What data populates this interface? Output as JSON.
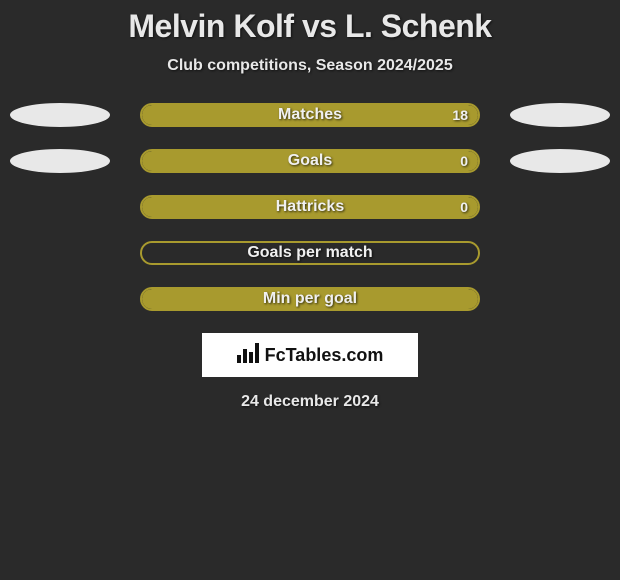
{
  "title": "Melvin Kolf vs L. Schenk",
  "subtitle": "Club competitions, Season 2024/2025",
  "date_text": "24 december 2024",
  "logo_text": "FcTables.com",
  "colors": {
    "background": "#2a2a2a",
    "ellipse_left": "#e8e8e8",
    "ellipse_right": "#e8e8e8",
    "bar_border": "#a89a2e",
    "bar_fill": "#a89a2e",
    "text": "#e8e8e8",
    "logo_bg": "#ffffff",
    "logo_text": "#111111"
  },
  "rows": [
    {
      "label": "Matches",
      "value": "18",
      "fill_pct": 100,
      "show_left_ellipse": true,
      "show_right_ellipse": true,
      "show_value": true
    },
    {
      "label": "Goals",
      "value": "0",
      "fill_pct": 100,
      "show_left_ellipse": true,
      "show_right_ellipse": true,
      "show_value": true
    },
    {
      "label": "Hattricks",
      "value": "0",
      "fill_pct": 100,
      "show_left_ellipse": false,
      "show_right_ellipse": false,
      "show_value": true
    },
    {
      "label": "Goals per match",
      "value": "",
      "fill_pct": 0,
      "show_left_ellipse": false,
      "show_right_ellipse": false,
      "show_value": false
    },
    {
      "label": "Min per goal",
      "value": "",
      "fill_pct": 100,
      "show_left_ellipse": false,
      "show_right_ellipse": false,
      "show_value": false
    }
  ]
}
